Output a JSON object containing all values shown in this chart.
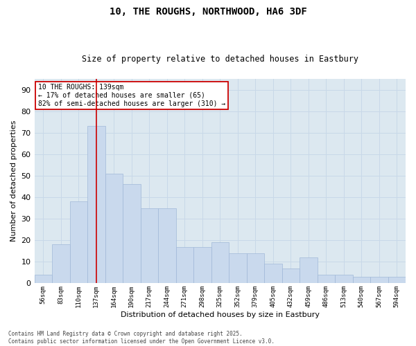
{
  "title1": "10, THE ROUGHS, NORTHWOOD, HA6 3DF",
  "title2": "Size of property relative to detached houses in Eastbury",
  "xlabel": "Distribution of detached houses by size in Eastbury",
  "ylabel": "Number of detached properties",
  "categories": [
    "56sqm",
    "83sqm",
    "110sqm",
    "137sqm",
    "164sqm",
    "190sqm",
    "217sqm",
    "244sqm",
    "271sqm",
    "298sqm",
    "325sqm",
    "352sqm",
    "379sqm",
    "405sqm",
    "432sqm",
    "459sqm",
    "486sqm",
    "513sqm",
    "540sqm",
    "567sqm",
    "594sqm"
  ],
  "values": [
    4,
    18,
    38,
    73,
    51,
    46,
    35,
    35,
    17,
    17,
    19,
    14,
    14,
    9,
    7,
    12,
    4,
    4,
    3,
    3,
    3
  ],
  "bar_color": "#c9d9ed",
  "bar_edge_color": "#a0b8d8",
  "vline_x": 3,
  "vline_color": "#cc0000",
  "annotation_text": "10 THE ROUGHS: 139sqm\n← 17% of detached houses are smaller (65)\n82% of semi-detached houses are larger (310) →",
  "annotation_box_color": "#ffffff",
  "annotation_box_edge": "#cc0000",
  "footer": "Contains HM Land Registry data © Crown copyright and database right 2025.\nContains public sector information licensed under the Open Government Licence v3.0.",
  "ylim": [
    0,
    95
  ],
  "yticks": [
    0,
    10,
    20,
    30,
    40,
    50,
    60,
    70,
    80,
    90
  ],
  "background_color": "#ffffff",
  "grid_color": "#c8d8e8",
  "ax_bg_color": "#dce8f0"
}
